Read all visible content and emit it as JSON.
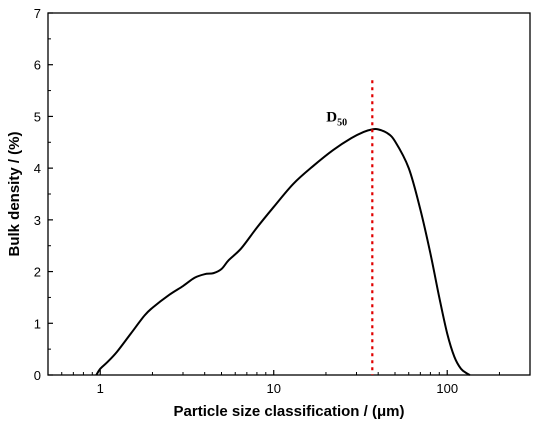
{
  "chart_data": {
    "type": "line",
    "title": "",
    "xlabel": "Particle size classification / (μm)",
    "ylabel": "Bulk density / (%)",
    "x_scale": "log",
    "xlim": [
      0.5,
      300
    ],
    "ylim": [
      0,
      7
    ],
    "x_ticks": [
      1,
      10,
      100
    ],
    "x_tick_labels": [
      "1",
      "10",
      "100"
    ],
    "y_ticks": [
      0,
      1,
      2,
      3,
      4,
      5,
      6,
      7
    ],
    "y_tick_labels": [
      "0",
      "1",
      "2",
      "3",
      "4",
      "5",
      "6",
      "7"
    ],
    "grid": false,
    "legend": "none",
    "series": [
      {
        "color": "#000000",
        "x": [
          0.95,
          1.0,
          1.1,
          1.25,
          1.5,
          1.8,
          2.0,
          2.5,
          3.0,
          3.5,
          4.0,
          4.5,
          5.0,
          5.5,
          6.5,
          8.0,
          10.0,
          13.0,
          17.0,
          22.0,
          28.0,
          33.0,
          37.0,
          40.0,
          45.0,
          50.0,
          60.0,
          70.0,
          80.0,
          90.0,
          100.0,
          110.0,
          120.0,
          130.0,
          135.0
        ],
        "y": [
          0.0,
          0.12,
          0.25,
          0.45,
          0.8,
          1.15,
          1.3,
          1.55,
          1.72,
          1.88,
          1.95,
          1.97,
          2.05,
          2.22,
          2.45,
          2.85,
          3.25,
          3.7,
          4.05,
          4.35,
          4.58,
          4.7,
          4.75,
          4.75,
          4.68,
          4.52,
          4.0,
          3.2,
          2.35,
          1.5,
          0.8,
          0.35,
          0.12,
          0.03,
          0.0
        ]
      }
    ],
    "annotations": [
      {
        "label": "D",
        "subscript": "50",
        "x": 37,
        "y_top": 5.7,
        "line_color": "#e00000",
        "line_style": "dotted"
      }
    ]
  }
}
